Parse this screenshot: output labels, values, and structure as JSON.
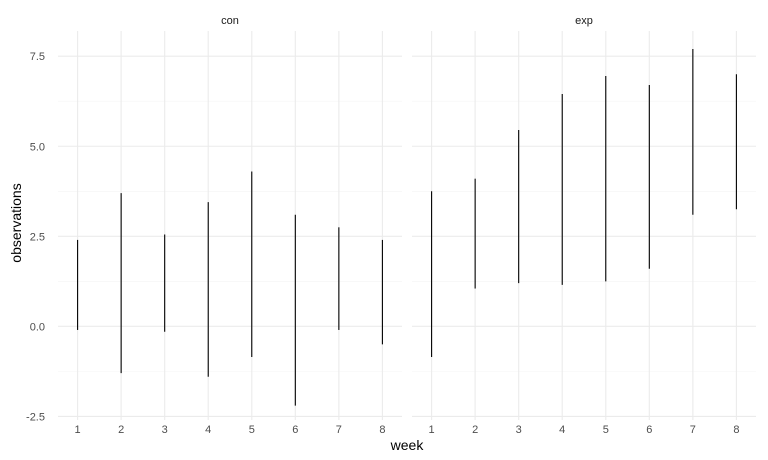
{
  "chart_data": {
    "type": "range",
    "xlabel": "week",
    "ylabel": "observations",
    "x": [
      1,
      2,
      3,
      4,
      5,
      6,
      7,
      8
    ],
    "xlim": [
      0.55,
      8.45
    ],
    "ylim": [
      -2.6,
      8.2
    ],
    "y_ticks": [
      -2.5,
      0.0,
      2.5,
      5.0,
      7.5
    ],
    "y_tick_labels": [
      "-2.5",
      "0.0",
      "2.5",
      "5.0",
      "7.5"
    ],
    "x_tick_labels": [
      "1",
      "2",
      "3",
      "4",
      "5",
      "6",
      "7",
      "8"
    ],
    "grid": true,
    "legend": "none",
    "colors": {
      "line": "#000000",
      "grid_major": "#ebebeb",
      "grid_minor": "#f4f4f4"
    },
    "panels": [
      {
        "name": "con",
        "ranges": [
          {
            "x": 1,
            "low": -0.1,
            "high": 2.4
          },
          {
            "x": 2,
            "low": -1.3,
            "high": 3.7
          },
          {
            "x": 3,
            "low": -0.15,
            "high": 2.55
          },
          {
            "x": 4,
            "low": -1.4,
            "high": 3.45
          },
          {
            "x": 5,
            "low": -0.85,
            "high": 4.3
          },
          {
            "x": 6,
            "low": -2.2,
            "high": 3.1
          },
          {
            "x": 7,
            "low": -0.1,
            "high": 2.75
          },
          {
            "x": 8,
            "low": -0.5,
            "high": 2.4
          }
        ]
      },
      {
        "name": "exp",
        "ranges": [
          {
            "x": 1,
            "low": -0.85,
            "high": 3.75
          },
          {
            "x": 2,
            "low": 1.05,
            "high": 4.1
          },
          {
            "x": 3,
            "low": 1.2,
            "high": 5.45
          },
          {
            "x": 4,
            "low": 1.15,
            "high": 6.45
          },
          {
            "x": 5,
            "low": 1.25,
            "high": 6.95
          },
          {
            "x": 6,
            "low": 1.6,
            "high": 6.7
          },
          {
            "x": 7,
            "low": 3.1,
            "high": 7.7
          },
          {
            "x": 8,
            "low": 3.25,
            "high": 7.0
          }
        ]
      }
    ]
  }
}
